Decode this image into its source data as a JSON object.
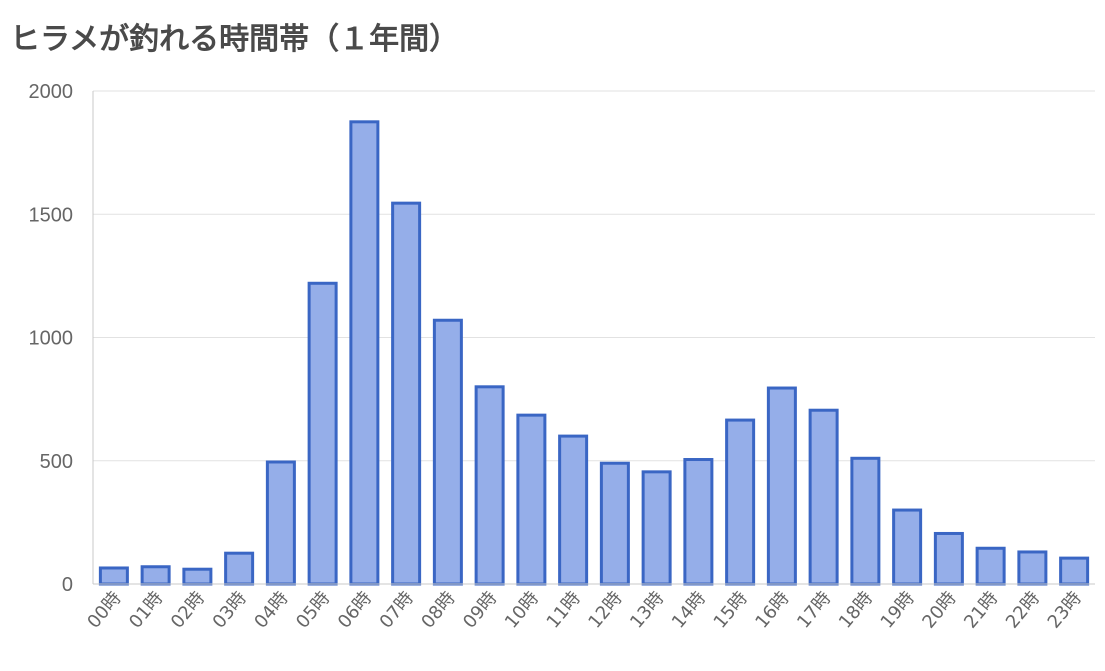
{
  "chart_data": {
    "type": "bar",
    "title": "ヒラメが釣れる時間帯（１年間）",
    "xlabel": "",
    "ylabel": "",
    "categories": [
      "00時",
      "01時",
      "02時",
      "03時",
      "04時",
      "05時",
      "06時",
      "07時",
      "08時",
      "09時",
      "10時",
      "11時",
      "12時",
      "13時",
      "14時",
      "15時",
      "16時",
      "17時",
      "18時",
      "19時",
      "20時",
      "21時",
      "22時",
      "23時"
    ],
    "values": [
      65,
      70,
      60,
      125,
      495,
      1220,
      1875,
      1545,
      1070,
      800,
      685,
      600,
      490,
      455,
      505,
      665,
      795,
      705,
      510,
      300,
      205,
      145,
      130,
      105
    ],
    "ylim": [
      0,
      2000
    ],
    "yticks": [
      0,
      500,
      1000,
      1500,
      2000
    ],
    "grid": true,
    "legend": "none",
    "bar_fill": "#95aee9",
    "bar_stroke": "#3a66c4"
  }
}
